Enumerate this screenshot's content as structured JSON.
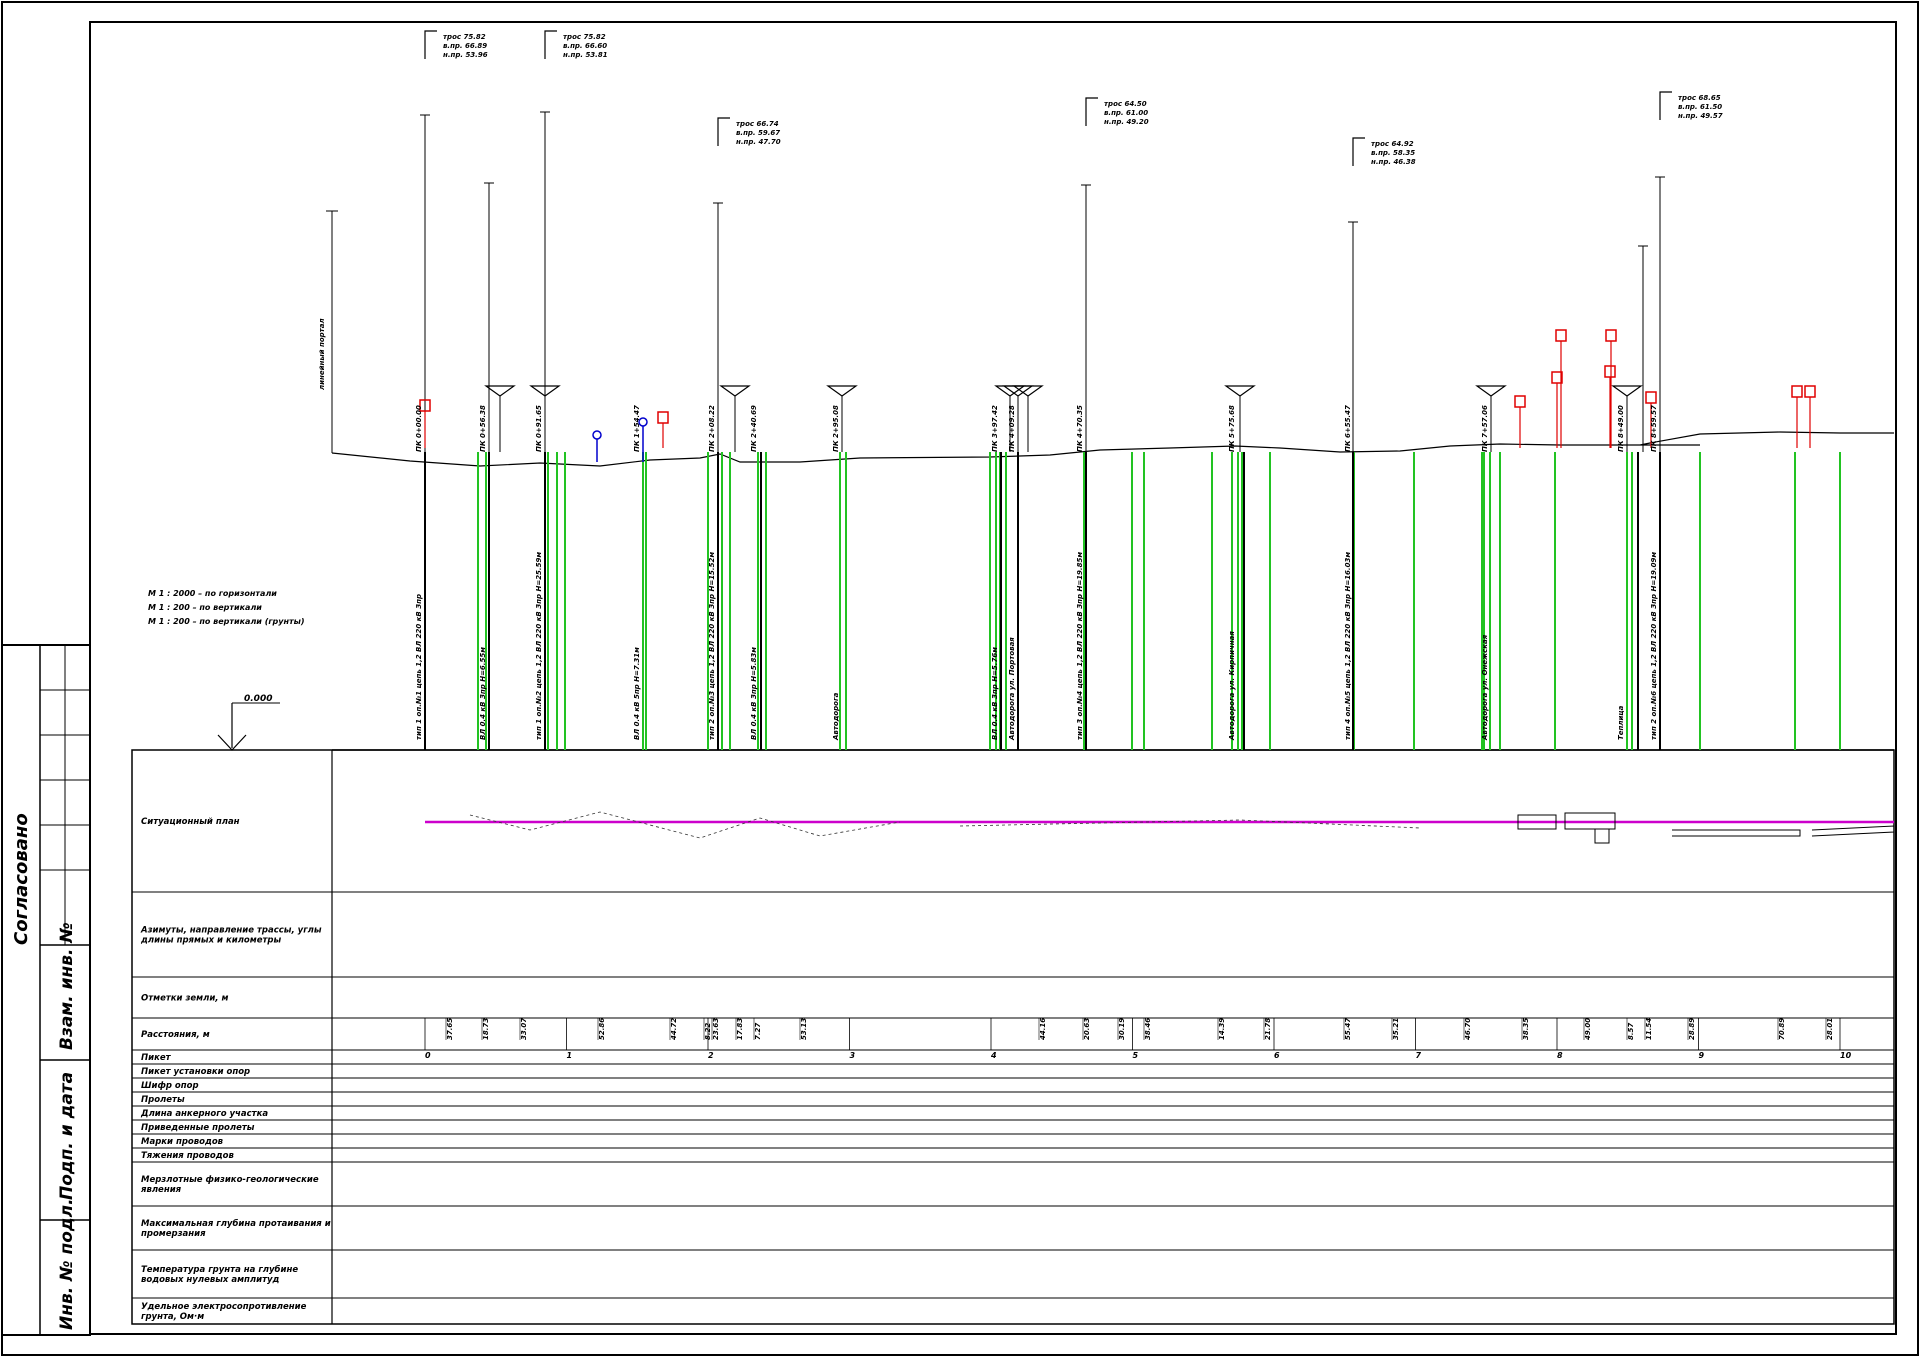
{
  "scale": {
    "horizontal": "М 1 : 2000 – по горизонтали",
    "vertical": "М 1 : 200 – по вертикали",
    "vertical_soil": "М 1 : 200 – по вертикали (грунты)",
    "datum": "0.000"
  },
  "side_block": {
    "agreed": "Согласовано",
    "inv_no": "Взам. инв. №",
    "sign_date": "Подп. и дата",
    "orig_no": "Инв. № подл."
  },
  "rows": [
    {
      "label": "Ситуационный план"
    },
    {
      "label": "Азимуты, направление трассы, углы длины прямых и километры"
    },
    {
      "label": "Отметки земли, м"
    },
    {
      "label": "Расстояния, м"
    },
    {
      "label": "Пикет"
    },
    {
      "label": "Пикет установки опор"
    },
    {
      "label": "Шифр опор"
    },
    {
      "label": "Пролеты"
    },
    {
      "label": "Длина анкерного участка"
    },
    {
      "label": "Приведенные пролеты"
    },
    {
      "label": "Марки проводов"
    },
    {
      "label": "Тяжения проводов"
    },
    {
      "label": "Мерзлотные физико-геологические явления"
    },
    {
      "label": "Максимальная глубина протаивания и промерзания"
    },
    {
      "label": "Температура грунта на глубине водовых нулевых амплитуд"
    },
    {
      "label": "Удельное электросопротивление грунта, Ом·м"
    }
  ],
  "portal_label": "линейный портал",
  "callouts": [
    {
      "l1": "трос 75.82",
      "l2": "в.пр. 66.89",
      "l3": "н.пр. 53.96"
    },
    {
      "l1": "трос 75.82",
      "l2": "в.пр. 66.60",
      "l3": "н.пр. 53.81"
    },
    {
      "l1": "трос 66.74",
      "l2": "в.пр. 59.67",
      "l3": "н.пр. 47.70"
    },
    {
      "l1": "трос 64.50",
      "l2": "в.пр. 61.00",
      "l3": "н.пр. 49.20"
    },
    {
      "l1": "трос 64.92",
      "l2": "в.пр. 58.35",
      "l3": "н.пр. 46.38"
    },
    {
      "l1": "трос 68.65",
      "l2": "в.пр. 61.50",
      "l3": "н.пр. 49.57"
    }
  ],
  "pk_labels": [
    {
      "pk": "ПК 0+00.00",
      "desc": "тип 1 оп.№1 цепь 1,2 ВЛ 220 кВ Зпр"
    },
    {
      "pk": "ПК 0+56.38",
      "desc": "ВЛ 0.4 кВ Зпр H=6.55м"
    },
    {
      "pk": "ПК 0+91.65",
      "desc": "тип 1 оп.№2 цепь 1,2 ВЛ 220 кВ Зпр H=25.59м"
    },
    {
      "pk": "ПК 1+54.47",
      "desc": "ВЛ 0.4 кВ 5пр H=7.31м"
    },
    {
      "pk": "ПК 2+08.22",
      "desc": "тип 2 оп.№3 цепь 1,2 ВЛ 220 кВ Зпр H=15.52м"
    },
    {
      "pk": "ПК 2+40.69",
      "desc": "ВЛ 0.4 кВ Зпр H=5.83м"
    },
    {
      "pk": "ПК 2+95.08",
      "desc": "Автодорога"
    },
    {
      "pk": "ПК 3+97.42",
      "desc": "ВЛ 0.4 кВ Зпр H=5.76м"
    },
    {
      "pk": "ПК 4+09.28",
      "desc": "Автодорога ул. Портовая"
    },
    {
      "pk": "ПК 4+70.35",
      "desc": "тип 3 оп.№4 цепь 1,2 ВЛ 220 кВ Зпр H=19.85м"
    },
    {
      "pk": "ПК 5+75.68",
      "desc": "Автодорога ул. Кирпичная"
    },
    {
      "pk": "ПК 6+55.47",
      "desc": "тип 4 оп.№5 цепь 1,2 ВЛ 220 кВ Зпр H=16.03м"
    },
    {
      "pk": "ПК 7+57.06",
      "desc": "Автодорога ул. Онежская"
    },
    {
      "pk": "ПК 8+49.00",
      "desc": "Теплица"
    },
    {
      "pk": "ПК 8+59.57",
      "desc": "тип 2 оп.№6 цепь 1,2 ВЛ 220 кВ Зпр H=19.09м"
    }
  ],
  "distances": [
    "37.65",
    "18.73",
    "33.07",
    "52.86",
    "44.72",
    "8.22",
    "23.63",
    "17.83",
    "7.27",
    "53.13",
    "44.16",
    "20.63",
    "30.19",
    "38.46",
    "14.39",
    "21.78",
    "55.47",
    "35.21",
    "46.70",
    "38.35",
    "49.00",
    "8.57",
    "11.54",
    "28.89",
    "70.89",
    "28.01"
  ],
  "pickets": [
    "0",
    "1",
    "2",
    "3",
    "4",
    "5",
    "6",
    "7",
    "8",
    "9",
    "10"
  ],
  "colors": {
    "ground": "#000000",
    "crossing": "#22c322",
    "line": "#cc00cc",
    "highlight": "#e00000",
    "lowvolt": "#0000cc"
  }
}
